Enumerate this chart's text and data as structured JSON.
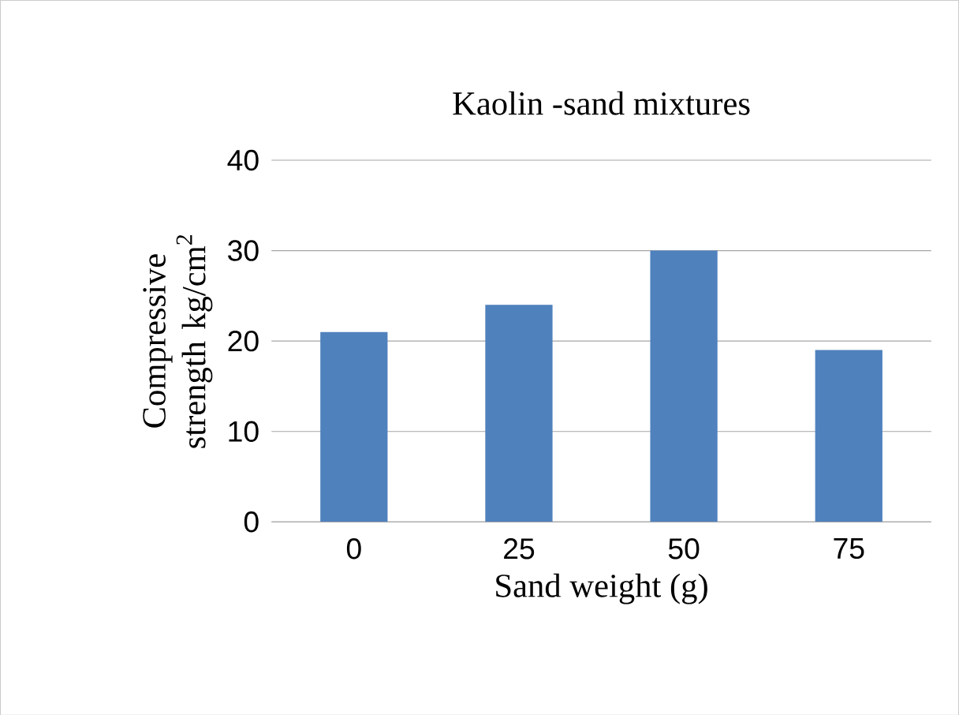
{
  "chart_data": {
    "type": "bar",
    "title": "Kaolin -sand mixtures",
    "xlabel": "Sand weight (g)",
    "ylabel": "Compressive strength kg/cm$^{2}$",
    "categories": [
      "0",
      "25",
      "50",
      "75"
    ],
    "values": [
      21,
      24,
      30,
      19
    ],
    "color": "#4f81bd",
    "ylim": [
      0,
      40
    ],
    "yticks": [
      0,
      10,
      20,
      30,
      40
    ],
    "grid": "y"
  }
}
